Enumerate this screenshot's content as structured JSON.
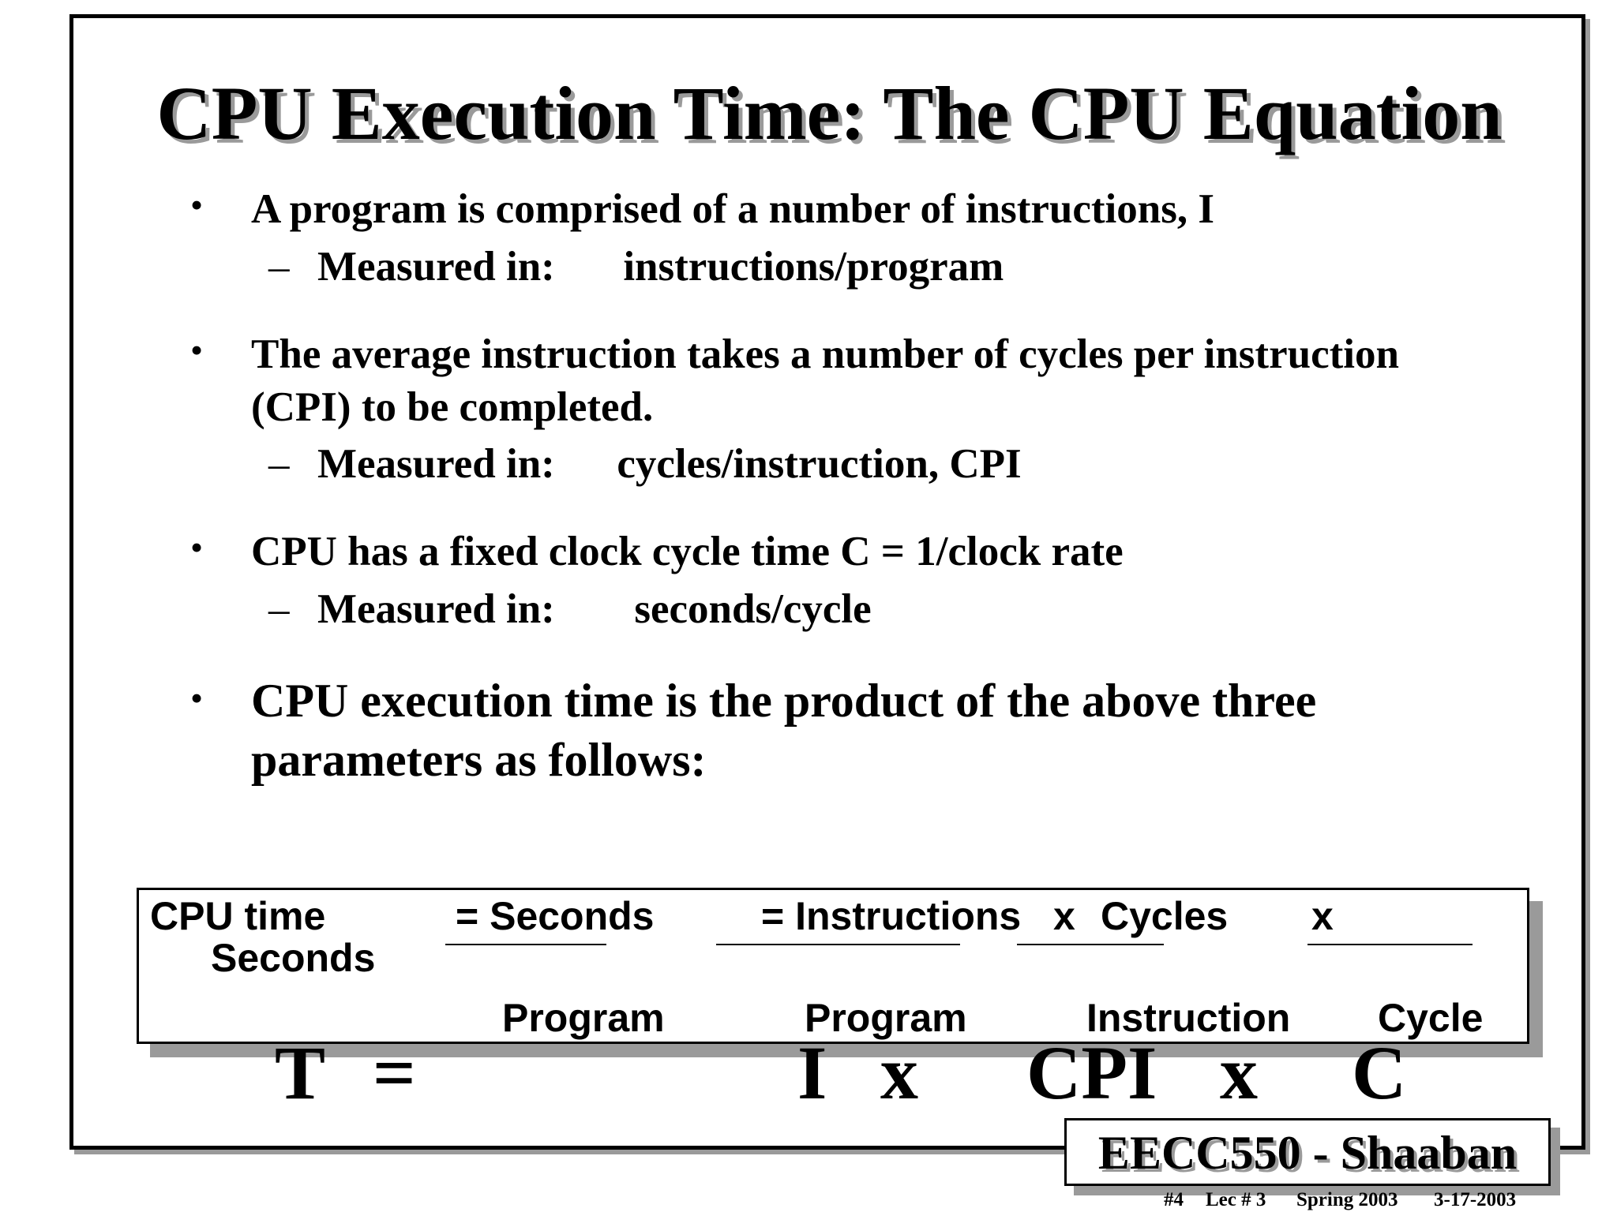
{
  "title": "CPU Execution Time: The CPU Equation",
  "bullet_symbol": "•",
  "dash_symbol": "–",
  "bullets": [
    {
      "text": "A program is comprised of a number of instructions,  I",
      "sub_label": "Measured in:",
      "sub_value": "instructions/program"
    },
    {
      "line1": "The average instruction takes a number of cycles per instruction",
      "line2": "(CPI) to be completed.",
      "sub_label": "Measured in:",
      "sub_value": "cycles/instruction,  CPI"
    },
    {
      "text": "CPU has a fixed clock cycle time  C  = 1/clock rate",
      "sub_label": "Measured in:",
      "sub_value": "seconds/cycle"
    },
    {
      "line1": "CPU execution time is the product of the above three",
      "line2": "parameters as follows:"
    }
  ],
  "equation": {
    "cpu_time": "CPU time",
    "seconds_left": "Seconds",
    "eq_seconds": "=  Seconds",
    "eq_instructions": "= Instructions",
    "x1": "x",
    "cycles": "Cycles",
    "x2": "x",
    "program1": "Program",
    "program2": "Program",
    "instruction": "Instruction",
    "cycle": "Cycle"
  },
  "formula": {
    "t": "T",
    "equals": "=",
    "i": "I",
    "x1": "x",
    "cpi": "CPI",
    "x2": "x",
    "c": "C"
  },
  "footer": {
    "label": "EECC550 - Shaaban",
    "slide_number": "#4",
    "lecture": "Lec # 3",
    "semester": "Spring 2003",
    "date": "3-17-2003"
  }
}
